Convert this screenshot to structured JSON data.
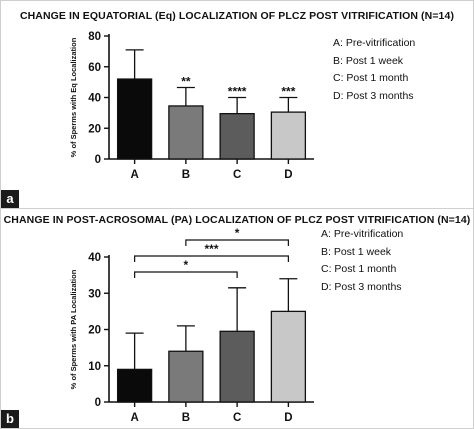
{
  "chart_data": [
    {
      "panel_tag": "a",
      "type": "bar",
      "title": "CHANGE IN EQUATORIAL (Eq) LOCALIZATION OF PLCZ POST VITRIFICATION (N=14)",
      "ylabel": "% of Sperms with Eq Localization",
      "xlabel": "",
      "categories": [
        "A",
        "B",
        "C",
        "D"
      ],
      "values": [
        52,
        34.5,
        29.5,
        30.5
      ],
      "errors": [
        19,
        12,
        10.5,
        9.5
      ],
      "significance": [
        "",
        "**",
        "****",
        "***"
      ],
      "colors": [
        "#0a0a0a",
        "#7a7a7a",
        "#5c5c5c",
        "#c8c8c8"
      ],
      "ylim": [
        0,
        80
      ],
      "yticks": [
        0,
        20,
        40,
        60,
        80
      ],
      "legend": [
        "A: Pre-vitrification",
        "B: Post 1 week",
        "C: Post 1 month",
        "D: Post 3 months"
      ],
      "legend_position": "right",
      "grid": false
    },
    {
      "panel_tag": "b",
      "type": "bar",
      "title": "CHANGE IN POST-ACROSOMAL (PA) LOCALIZATION OF PLCZ POST VITRIFICATION (N=14)",
      "ylabel": "% of Sperms with PA Localization",
      "xlabel": "",
      "categories": [
        "A",
        "B",
        "C",
        "D"
      ],
      "values": [
        9,
        14,
        19.5,
        25
      ],
      "errors": [
        10,
        7,
        12,
        9
      ],
      "colors": [
        "#0a0a0a",
        "#7a7a7a",
        "#5c5c5c",
        "#c8c8c8"
      ],
      "ylim": [
        0,
        40
      ],
      "yticks": [
        0,
        10,
        20,
        30,
        40
      ],
      "brackets": [
        {
          "from": "A",
          "to": "C",
          "label": "*",
          "level": 0
        },
        {
          "from": "A",
          "to": "D",
          "label": "***",
          "level": 1
        },
        {
          "from": "B",
          "to": "D",
          "label": "*",
          "level": 2
        }
      ],
      "legend": [
        "A: Pre-vitrification",
        "B: Post 1 week",
        "C: Post 1 month",
        "D: Post 3 months"
      ],
      "legend_position": "right",
      "grid": false
    }
  ]
}
